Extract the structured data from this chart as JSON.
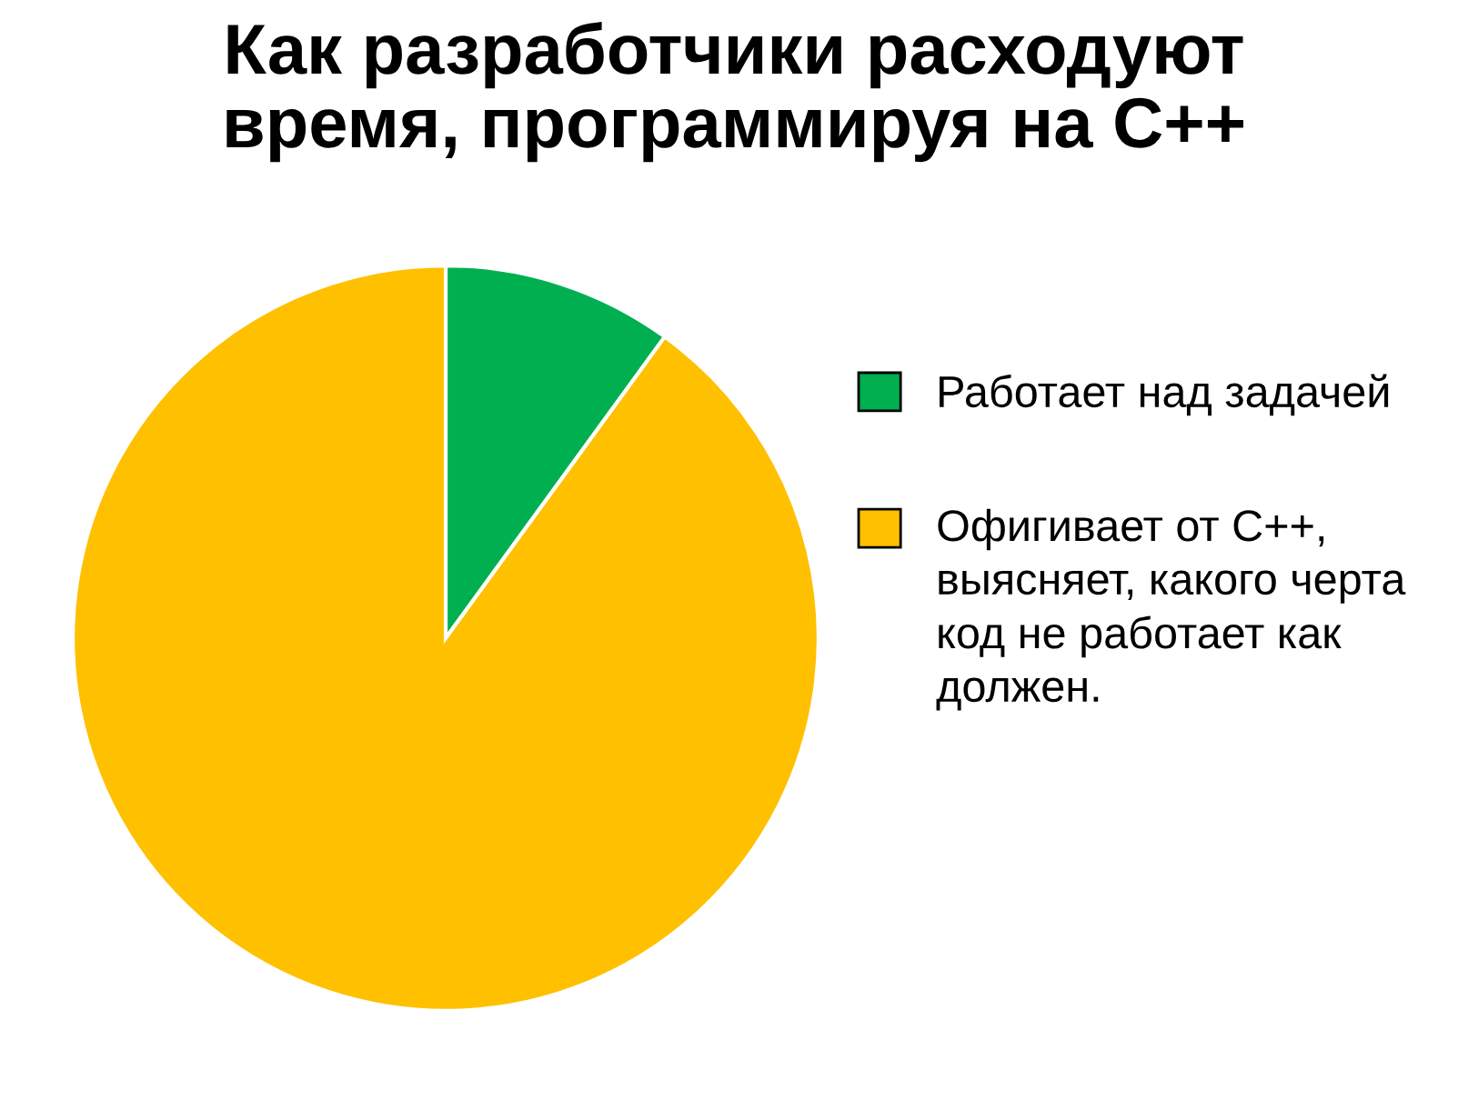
{
  "chart_data": {
    "type": "pie",
    "title": "Как разработчики расходуют\nвремя, программируя на C++",
    "categories": [
      "Работает над задачей",
      "Офигивает от C++,\nвыясняет, какого черта\nкод не работает как\nдолжен."
    ],
    "values": [
      10,
      90
    ],
    "colors": [
      "#00b050",
      "#ffc000"
    ],
    "legend": "right"
  }
}
